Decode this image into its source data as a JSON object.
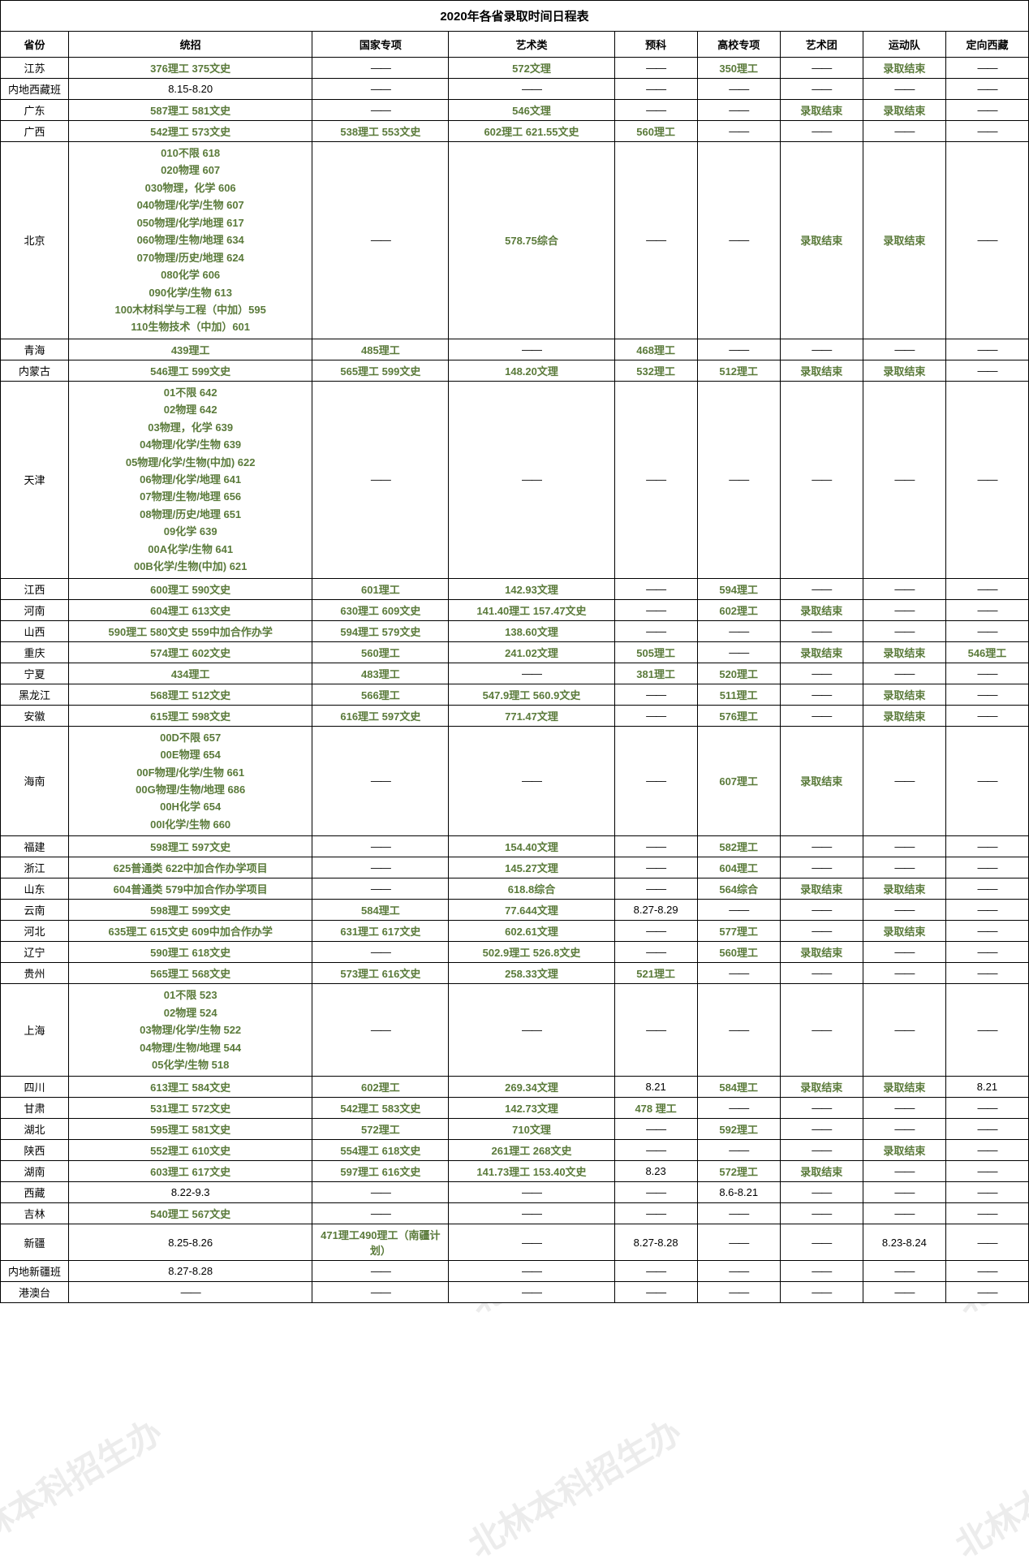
{
  "title": "2020年各省录取时间日程表",
  "dash": "——",
  "headers": {
    "province": "省份",
    "tongzhao": "统招",
    "guojia": "国家专项",
    "yishu": "艺术类",
    "yuke": "预科",
    "gaoxiao": "高校专项",
    "yishutuan": "艺术团",
    "yundong": "运动队",
    "dingxiang": "定向西藏"
  },
  "watermark_text": "北林本科招生办",
  "colors": {
    "green_text": "#5a7a3a",
    "highlight_bg": "#e3e3e3",
    "border": "#000000",
    "text": "#000000"
  },
  "rows": [
    {
      "p": "江苏",
      "c": [
        {
          "t": "376理工  375文史",
          "g": 1,
          "h": 1
        },
        {
          "t": "——"
        },
        {
          "t": "572文理",
          "g": 1,
          "h": 1
        },
        {
          "t": "——"
        },
        {
          "t": "350理工",
          "g": 1,
          "h": 1
        },
        {
          "t": "——"
        },
        {
          "t": "录取结束",
          "g": 1,
          "h": 1
        },
        {
          "t": "——"
        }
      ]
    },
    {
      "p": "内地西藏班",
      "c": [
        {
          "t": "8.15-8.20"
        },
        {
          "t": "——"
        },
        {
          "t": "——"
        },
        {
          "t": "——"
        },
        {
          "t": "——"
        },
        {
          "t": "——"
        },
        {
          "t": "——"
        },
        {
          "t": "——"
        }
      ]
    },
    {
      "p": "广东",
      "c": [
        {
          "t": "587理工 581文史",
          "g": 1,
          "h": 1
        },
        {
          "t": "——"
        },
        {
          "t": "546文理",
          "g": 1,
          "h": 1
        },
        {
          "t": "——"
        },
        {
          "t": "——"
        },
        {
          "t": "录取结束",
          "g": 1,
          "h": 1
        },
        {
          "t": "录取结束",
          "g": 1,
          "h": 1
        },
        {
          "t": "——"
        }
      ]
    },
    {
      "p": "广西",
      "c": [
        {
          "t": "542理工 573文史",
          "g": 1,
          "h": 1
        },
        {
          "t": "538理工 553文史",
          "g": 1,
          "h": 1
        },
        {
          "t": "602理工 621.55文史",
          "g": 1,
          "h": 1
        },
        {
          "t": "560理工",
          "g": 1,
          "h": 1
        },
        {
          "t": "——"
        },
        {
          "t": "——"
        },
        {
          "t": "——"
        },
        {
          "t": "——"
        }
      ]
    },
    {
      "p": "北京",
      "multi": 1,
      "c": [
        {
          "t": "010不限 618\n020物理 607\n030物理，化学 606\n040物理/化学/生物 607\n050物理/化学/地理 617\n060物理/生物/地理 634\n070物理/历史/地理 624\n080化学 606\n090化学/生物 613\n100木材科学与工程（中加）595\n110生物技术（中加）601",
          "g": 1,
          "h": 1
        },
        {
          "t": "——"
        },
        {
          "t": "578.75综合",
          "g": 1,
          "h": 1
        },
        {
          "t": "——"
        },
        {
          "t": "——"
        },
        {
          "t": "录取结束",
          "g": 1,
          "h": 1
        },
        {
          "t": "录取结束",
          "g": 1,
          "h": 1
        },
        {
          "t": "——"
        }
      ]
    },
    {
      "p": "青海",
      "c": [
        {
          "t": "439理工",
          "g": 1,
          "h": 1
        },
        {
          "t": "485理工",
          "g": 1,
          "h": 1
        },
        {
          "t": "——"
        },
        {
          "t": "468理工",
          "g": 1,
          "h": 1
        },
        {
          "t": "——"
        },
        {
          "t": "——"
        },
        {
          "t": "——"
        },
        {
          "t": "——"
        }
      ]
    },
    {
      "p": "内蒙古",
      "c": [
        {
          "t": "546理工  599文史",
          "g": 1,
          "h": 1
        },
        {
          "t": "565理工 599文史",
          "g": 1,
          "h": 1
        },
        {
          "t": "148.20文理",
          "g": 1,
          "h": 1
        },
        {
          "t": "532理工",
          "g": 1,
          "h": 1
        },
        {
          "t": "512理工",
          "g": 1,
          "h": 1
        },
        {
          "t": "录取结束",
          "g": 1,
          "h": 1
        },
        {
          "t": "录取结束",
          "g": 1,
          "h": 1
        },
        {
          "t": "——"
        }
      ]
    },
    {
      "p": "天津",
      "multi": 1,
      "c": [
        {
          "t": "01不限 642\n02物理 642\n03物理，化学 639\n04物理/化学/生物 639\n05物理/化学/生物(中加) 622\n06物理/化学/地理 641\n07物理/生物/地理 656\n08物理/历史/地理 651\n09化学 639\n00A化学/生物 641\n00B化学/生物(中加) 621",
          "g": 1,
          "h": 1
        },
        {
          "t": "——"
        },
        {
          "t": "——"
        },
        {
          "t": "——"
        },
        {
          "t": "——"
        },
        {
          "t": "——"
        },
        {
          "t": "——"
        },
        {
          "t": "——"
        }
      ]
    },
    {
      "p": "江西",
      "c": [
        {
          "t": "600理工 590文史",
          "g": 1,
          "h": 1
        },
        {
          "t": "601理工",
          "g": 1,
          "h": 1
        },
        {
          "t": "142.93文理",
          "g": 1,
          "h": 1
        },
        {
          "t": "——"
        },
        {
          "t": "594理工",
          "g": 1,
          "h": 1
        },
        {
          "t": "——"
        },
        {
          "t": "——"
        },
        {
          "t": "——"
        }
      ]
    },
    {
      "p": "河南",
      "c": [
        {
          "t": "604理工 613文史",
          "g": 1,
          "h": 1
        },
        {
          "t": "630理工 609文史",
          "g": 1,
          "h": 1
        },
        {
          "t": "141.40理工 157.47文史",
          "g": 1,
          "h": 1
        },
        {
          "t": "——"
        },
        {
          "t": "602理工",
          "g": 1,
          "h": 1
        },
        {
          "t": "录取结束",
          "g": 1,
          "h": 1
        },
        {
          "t": "——"
        },
        {
          "t": "——"
        }
      ]
    },
    {
      "p": "山西",
      "c": [
        {
          "t": "590理工 580文史 559中加合作办学",
          "g": 1,
          "h": 1
        },
        {
          "t": "594理工 579文史",
          "g": 1,
          "h": 1
        },
        {
          "t": "138.60文理",
          "g": 1,
          "h": 1
        },
        {
          "t": "——"
        },
        {
          "t": "——"
        },
        {
          "t": "——"
        },
        {
          "t": "——"
        },
        {
          "t": "——"
        }
      ]
    },
    {
      "p": "重庆",
      "c": [
        {
          "t": "574理工 602文史",
          "g": 1,
          "h": 1
        },
        {
          "t": "560理工",
          "g": 1,
          "h": 1
        },
        {
          "t": "241.02文理",
          "g": 1,
          "h": 1
        },
        {
          "t": "505理工",
          "g": 1,
          "h": 1
        },
        {
          "t": "——"
        },
        {
          "t": "录取结束",
          "g": 1,
          "h": 1
        },
        {
          "t": "录取结束",
          "g": 1,
          "h": 1
        },
        {
          "t": "546理工",
          "g": 1,
          "h": 1
        }
      ]
    },
    {
      "p": "宁夏",
      "c": [
        {
          "t": "434理工",
          "g": 1,
          "h": 1
        },
        {
          "t": "483理工",
          "g": 1,
          "h": 1
        },
        {
          "t": "——"
        },
        {
          "t": "381理工",
          "g": 1,
          "h": 1
        },
        {
          "t": "520理工",
          "g": 1,
          "h": 1
        },
        {
          "t": "——"
        },
        {
          "t": "——"
        },
        {
          "t": "——"
        }
      ]
    },
    {
      "p": "黑龙江",
      "c": [
        {
          "t": "568理工  512文史",
          "g": 1,
          "h": 1
        },
        {
          "t": "566理工",
          "g": 1,
          "h": 1
        },
        {
          "t": "547.9理工 560.9文史",
          "g": 1,
          "h": 1
        },
        {
          "t": "——"
        },
        {
          "t": "511理工",
          "g": 1,
          "h": 1
        },
        {
          "t": "——"
        },
        {
          "t": "录取结束",
          "g": 1,
          "h": 1
        },
        {
          "t": "——"
        }
      ]
    },
    {
      "p": "安徽",
      "c": [
        {
          "t": "615理工 598文史",
          "g": 1,
          "h": 1
        },
        {
          "t": "616理工 597文史",
          "g": 1,
          "h": 1
        },
        {
          "t": "771.47文理",
          "g": 1,
          "h": 1
        },
        {
          "t": "——"
        },
        {
          "t": "576理工",
          "g": 1,
          "h": 1
        },
        {
          "t": "——"
        },
        {
          "t": "录取结束",
          "g": 1,
          "h": 1
        },
        {
          "t": "——"
        }
      ]
    },
    {
      "p": "海南",
      "multi": 1,
      "c": [
        {
          "t": "00D不限 657\n00E物理 654\n00F物理/化学/生物 661\n00G物理/生物/地理 686\n00H化学 654\n00I化学/生物 660",
          "g": 1,
          "h": 1
        },
        {
          "t": "——"
        },
        {
          "t": "——"
        },
        {
          "t": "——"
        },
        {
          "t": "607理工",
          "g": 1,
          "h": 1
        },
        {
          "t": "录取结束",
          "g": 1,
          "h": 1
        },
        {
          "t": "——"
        },
        {
          "t": "——"
        }
      ]
    },
    {
      "p": "福建",
      "c": [
        {
          "t": "598理工 597文史",
          "g": 1,
          "h": 1
        },
        {
          "t": "——"
        },
        {
          "t": "154.40文理",
          "g": 1,
          "h": 1
        },
        {
          "t": "——"
        },
        {
          "t": "582理工",
          "g": 1,
          "h": 1
        },
        {
          "t": "——"
        },
        {
          "t": "——"
        },
        {
          "t": "——"
        }
      ]
    },
    {
      "p": "浙江",
      "c": [
        {
          "t": "625普通类 622中加合作办学项目",
          "g": 1,
          "h": 1
        },
        {
          "t": "——"
        },
        {
          "t": "145.27文理",
          "g": 1,
          "h": 1
        },
        {
          "t": "——"
        },
        {
          "t": "604理工",
          "g": 1,
          "h": 1
        },
        {
          "t": "——"
        },
        {
          "t": "——"
        },
        {
          "t": "——"
        }
      ]
    },
    {
      "p": "山东",
      "c": [
        {
          "t": "604普通类 579中加合作办学项目",
          "g": 1,
          "h": 1
        },
        {
          "t": "——"
        },
        {
          "t": "618.8综合",
          "g": 1,
          "h": 1
        },
        {
          "t": "——"
        },
        {
          "t": "564综合",
          "g": 1,
          "h": 1
        },
        {
          "t": "录取结束",
          "g": 1,
          "h": 1
        },
        {
          "t": "录取结束",
          "g": 1,
          "h": 1
        },
        {
          "t": "——"
        }
      ]
    },
    {
      "p": "云南",
      "c": [
        {
          "t": "598理工 599文史",
          "g": 1,
          "h": 1
        },
        {
          "t": "584理工",
          "g": 1,
          "h": 1
        },
        {
          "t": "77.644文理",
          "g": 1,
          "h": 1
        },
        {
          "t": "8.27-8.29"
        },
        {
          "t": "——"
        },
        {
          "t": "——"
        },
        {
          "t": "——"
        },
        {
          "t": "——"
        }
      ]
    },
    {
      "p": "河北",
      "c": [
        {
          "t": "635理工 615文史 609中加合作办学",
          "g": 1,
          "h": 1
        },
        {
          "t": "631理工 617文史",
          "g": 1,
          "h": 1
        },
        {
          "t": "602.61文理",
          "g": 1,
          "h": 1
        },
        {
          "t": "——"
        },
        {
          "t": "577理工",
          "g": 1,
          "h": 1
        },
        {
          "t": "——"
        },
        {
          "t": "录取结束",
          "g": 1,
          "h": 1
        },
        {
          "t": "——"
        }
      ]
    },
    {
      "p": "辽宁",
      "c": [
        {
          "t": "590理工 618文史",
          "g": 1,
          "h": 1
        },
        {
          "t": "——"
        },
        {
          "t": "502.9理工 526.8文史",
          "g": 1,
          "h": 1
        },
        {
          "t": "——"
        },
        {
          "t": "560理工",
          "g": 1,
          "h": 1
        },
        {
          "t": "录取结束",
          "g": 1,
          "h": 1
        },
        {
          "t": "——"
        },
        {
          "t": "——"
        }
      ]
    },
    {
      "p": "贵州",
      "c": [
        {
          "t": "565理工 568文史",
          "g": 1,
          "h": 1
        },
        {
          "t": "573理工 616文史",
          "g": 1,
          "h": 1
        },
        {
          "t": "258.33文理",
          "g": 1,
          "h": 1
        },
        {
          "t": "521理工",
          "g": 1,
          "h": 1
        },
        {
          "t": "——"
        },
        {
          "t": "——"
        },
        {
          "t": "——"
        },
        {
          "t": "——"
        }
      ]
    },
    {
      "p": "上海",
      "multi": 1,
      "c": [
        {
          "t": "01不限 523\n02物理 524\n03物理/化学/生物 522\n04物理/生物/地理 544\n05化学/生物 518",
          "g": 1,
          "h": 1
        },
        {
          "t": "——"
        },
        {
          "t": "——"
        },
        {
          "t": "——"
        },
        {
          "t": "——"
        },
        {
          "t": "——"
        },
        {
          "t": "——"
        },
        {
          "t": "——"
        }
      ]
    },
    {
      "p": "四川",
      "c": [
        {
          "t": "613理工 584文史",
          "g": 1,
          "h": 1
        },
        {
          "t": "602理工",
          "g": 1,
          "h": 1
        },
        {
          "t": "269.34文理",
          "g": 1,
          "h": 1
        },
        {
          "t": "8.21"
        },
        {
          "t": "584理工",
          "g": 1,
          "h": 1
        },
        {
          "t": "录取结束",
          "g": 1,
          "h": 1
        },
        {
          "t": "录取结束",
          "g": 1,
          "h": 1
        },
        {
          "t": "8.21"
        }
      ]
    },
    {
      "p": "甘肃",
      "c": [
        {
          "t": "531理工 572文史",
          "g": 1,
          "h": 1
        },
        {
          "t": "542理工 583文史",
          "g": 1,
          "h": 1
        },
        {
          "t": "142.73文理",
          "g": 1,
          "h": 1
        },
        {
          "t": "478 理工",
          "g": 1,
          "h": 1
        },
        {
          "t": "——"
        },
        {
          "t": "——"
        },
        {
          "t": "——"
        },
        {
          "t": "——"
        }
      ]
    },
    {
      "p": "湖北",
      "c": [
        {
          "t": "595理工 581文史",
          "g": 1,
          "h": 1
        },
        {
          "t": "572理工",
          "g": 1,
          "h": 1
        },
        {
          "t": "710文理",
          "g": 1,
          "h": 1
        },
        {
          "t": "——"
        },
        {
          "t": "592理工",
          "g": 1,
          "h": 1
        },
        {
          "t": "——"
        },
        {
          "t": "——"
        },
        {
          "t": "——"
        }
      ]
    },
    {
      "p": "陕西",
      "c": [
        {
          "t": "552理工 610文史",
          "g": 1,
          "h": 1
        },
        {
          "t": "554理工 618文史",
          "g": 1,
          "h": 1
        },
        {
          "t": "261理工 268文史",
          "g": 1,
          "h": 1
        },
        {
          "t": "——"
        },
        {
          "t": "——"
        },
        {
          "t": "——"
        },
        {
          "t": "录取结束",
          "g": 1,
          "h": 1
        },
        {
          "t": "——"
        }
      ]
    },
    {
      "p": "湖南",
      "c": [
        {
          "t": "603理工 617文史",
          "g": 1,
          "h": 1
        },
        {
          "t": "597理工 616文史",
          "g": 1,
          "h": 1
        },
        {
          "t": "141.73理工 153.40文史",
          "g": 1,
          "h": 1
        },
        {
          "t": "8.23"
        },
        {
          "t": "572理工",
          "g": 1,
          "h": 1
        },
        {
          "t": "录取结束",
          "g": 1,
          "h": 1
        },
        {
          "t": "——"
        },
        {
          "t": "——"
        }
      ]
    },
    {
      "p": "西藏",
      "c": [
        {
          "t": "8.22-9.3"
        },
        {
          "t": "——"
        },
        {
          "t": "——"
        },
        {
          "t": "——"
        },
        {
          "t": "8.6-8.21"
        },
        {
          "t": "——"
        },
        {
          "t": "——"
        },
        {
          "t": "——"
        }
      ]
    },
    {
      "p": "吉林",
      "c": [
        {
          "t": "540理工 567文史",
          "g": 1,
          "h": 1
        },
        {
          "t": "——"
        },
        {
          "t": "——"
        },
        {
          "t": "——"
        },
        {
          "t": "——"
        },
        {
          "t": "——"
        },
        {
          "t": "——"
        },
        {
          "t": "——"
        }
      ]
    },
    {
      "p": "新疆",
      "c": [
        {
          "t": "8.25-8.26"
        },
        {
          "t": "471理工490理工（南疆计划）",
          "g": 1,
          "h": 1
        },
        {
          "t": "——"
        },
        {
          "t": "8.27-8.28"
        },
        {
          "t": "——"
        },
        {
          "t": "——"
        },
        {
          "t": "8.23-8.24"
        },
        {
          "t": "——"
        }
      ]
    },
    {
      "p": "内地新疆班",
      "c": [
        {
          "t": "8.27-8.28"
        },
        {
          "t": "——"
        },
        {
          "t": "——"
        },
        {
          "t": "——"
        },
        {
          "t": "——"
        },
        {
          "t": "——"
        },
        {
          "t": "——"
        },
        {
          "t": "——"
        }
      ]
    },
    {
      "p": "港澳台",
      "c": [
        {
          "t": "——"
        },
        {
          "t": "——"
        },
        {
          "t": "——"
        },
        {
          "t": "——"
        },
        {
          "t": "——"
        },
        {
          "t": "——"
        },
        {
          "t": "——"
        },
        {
          "t": "——"
        }
      ]
    }
  ]
}
